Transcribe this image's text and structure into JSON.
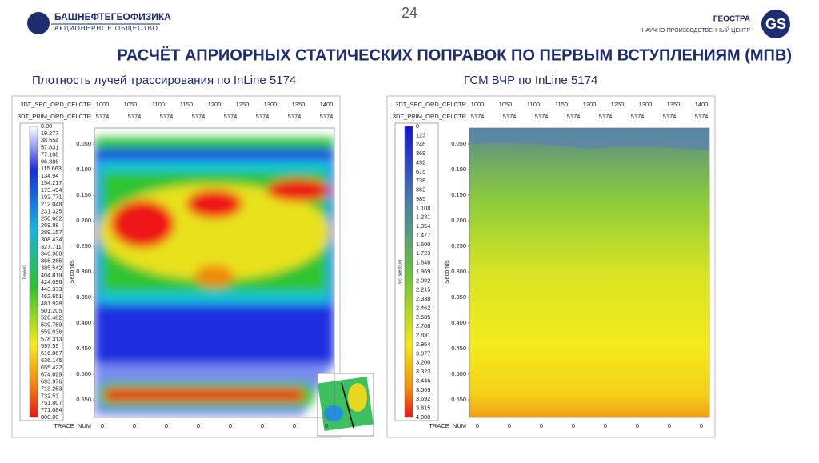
{
  "header": {
    "left_logo": {
      "name": "БАШНЕФТЕГЕОФИЗИКА",
      "subtitle": "АКЦИОНЕРНОЕ ОБЩЕСТВО"
    },
    "page_number": "24",
    "right_logo": {
      "name": "ГЕОСТРА",
      "subtitle": "НАУЧНО-ПРОИЗВОДСТВЕННЫЙ ЦЕНТР",
      "mark": "GS"
    }
  },
  "title": "РАСЧЁТ АПРИОРНЫХ СТАТИЧЕСКИХ ПОПРАВОК ПО ПЕРВЫМ ВСТУПЛЕНИЯМ (МПВ)",
  "panels": [
    {
      "caption": "Плотность лучей трассирования по InLine 5174",
      "sec_label": "3DT_SEC_ORD_CELCTR",
      "sec_values": [
        "1000",
        "1050",
        "1100",
        "1150",
        "1200",
        "1250",
        "1300",
        "1350",
        "1400"
      ],
      "prim_label": "3DT_PRIM_ORD_CELCTR",
      "prim_values": [
        "5174",
        "5174",
        "5174",
        "5174",
        "5174",
        "5174",
        "5174",
        "5174"
      ],
      "axis_label": "Seconds",
      "seconds_ticks": [
        "0.050",
        "0.100",
        "0.150",
        "0.200",
        "0.250",
        "0.300",
        "0.350",
        "0.400",
        "0.450",
        "0.500",
        "0.550"
      ],
      "trace_label": "TRACE_NUM",
      "trace_values": [
        "0",
        "0",
        "0",
        "0",
        "0",
        "0",
        "0",
        "0"
      ],
      "colorbar_title": "Depvel2",
      "colorbar_labels": [
        "0.00",
        "19.277",
        "38.554",
        "57.831",
        "77.108",
        "96.386",
        "115.663",
        "134.94",
        "154.217",
        "173.494",
        "192.771",
        "212.048",
        "231.325",
        "250.602",
        "269.88",
        "289.157",
        "308.434",
        "327.711",
        "346.988",
        "366.265",
        "385.542",
        "404.819",
        "424.096",
        "443.373",
        "462.651",
        "481.928",
        "501.205",
        "520.482",
        "539.759",
        "559.036",
        "578.313",
        "597.59",
        "616.867",
        "636.145",
        "655.422",
        "674.699",
        "693.976",
        "713.253",
        "732.53",
        "751.807",
        "771.084",
        "800.00"
      ]
    },
    {
      "caption": "ГСМ ВЧР по InLine 5174",
      "sec_label": "3DT_SEC_ORD_CELCTR",
      "sec_values": [
        "1000",
        "1050",
        "1100",
        "1150",
        "1200",
        "1250",
        "1300",
        "1350",
        "1400"
      ],
      "prim_label": "3DT_PRIM_ORD_CELCTR",
      "prim_values": [
        "5174",
        "5174",
        "5174",
        "5174",
        "5174",
        "5174",
        "5174",
        "5174"
      ],
      "axis_label": "Seconds",
      "seconds_ticks": [
        "0.050",
        "0.100",
        "0.150",
        "0.200",
        "0.250",
        "0.300",
        "0.350",
        "0.400",
        "0.450",
        "0.500",
        "0.550"
      ],
      "trace_label": "TRACE_NUM",
      "trace_values": [
        "0",
        "0",
        "0",
        "0",
        "0",
        "0",
        "0",
        "0"
      ],
      "colorbar_title": "Vlc_spectrum",
      "colorbar_labels": [
        "0",
        "123",
        "246",
        "369",
        "492",
        "615",
        "738",
        "862",
        "985",
        "1.108",
        "1.231",
        "1.354",
        "1.477",
        "1.600",
        "1.723",
        "1.846",
        "1.969",
        "2.092",
        "2.215",
        "2.338",
        "2.462",
        "2.585",
        "2.708",
        "2.831",
        "2.954",
        "3.077",
        "3.200",
        "3.323",
        "3.446",
        "3.569",
        "3.692",
        "3.815",
        "4.000"
      ]
    }
  ]
}
